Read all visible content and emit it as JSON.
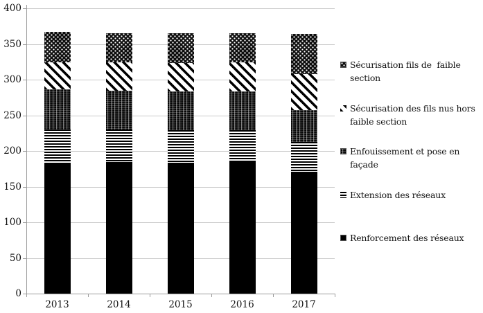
{
  "chart_data": {
    "type": "bar",
    "stacked": true,
    "title": "",
    "xlabel": "",
    "ylabel": "",
    "categories": [
      "2013",
      "2014",
      "2015",
      "2016",
      "2017"
    ],
    "series": [
      {
        "name": "Renforcement des réseaux",
        "pattern": "solid",
        "values": [
          184,
          184,
          184,
          184,
          171
        ]
      },
      {
        "name": "Extension des réseaux",
        "pattern": "horizontal-stripes",
        "values": [
          46,
          46,
          45,
          45,
          42
        ]
      },
      {
        "name": "Enfouissement et pose en façade",
        "pattern": "dense-weave",
        "values": [
          56,
          55,
          55,
          55,
          44
        ]
      },
      {
        "name": "Sécurisation des fils nus hors faible section",
        "pattern": "diagonal-stripes",
        "values": [
          38,
          39,
          39,
          40,
          51
        ]
      },
      {
        "name": "Sécurisation fils de  faible section",
        "pattern": "dots",
        "values": [
          43,
          41,
          42,
          41,
          56
        ]
      }
    ],
    "legend": [
      {
        "label": "Sécurisation fils de  faible section",
        "pattern": "dots",
        "lines": [
          "Sécurisation fils de  faible",
          "section"
        ]
      },
      {
        "label": "Sécurisation des fils nus hors faible section",
        "pattern": "diagonal-stripes",
        "lines": [
          "Sécurisation des fils nus hors",
          "faible section"
        ]
      },
      {
        "label": "Enfouissement et pose en façade",
        "pattern": "dense-weave",
        "lines": [
          "Enfouissement et pose en",
          "façade"
        ]
      },
      {
        "label": "Extension des réseaux",
        "pattern": "horizontal-stripes",
        "lines": [
          "Extension des réseaux"
        ]
      },
      {
        "label": "Renforcement des réseaux",
        "pattern": "solid",
        "lines": [
          "Renforcement des réseaux"
        ]
      }
    ],
    "ylim": [
      0,
      400
    ],
    "yticks": [
      0,
      50,
      100,
      150,
      200,
      250,
      300,
      350,
      400
    ],
    "grid": true,
    "legend_position": "right",
    "colors": {
      "bar": "#000000",
      "grid": "#c9c9c9",
      "axis": "#9b9b9b",
      "text": "#111111",
      "background": "#ffffff"
    }
  }
}
